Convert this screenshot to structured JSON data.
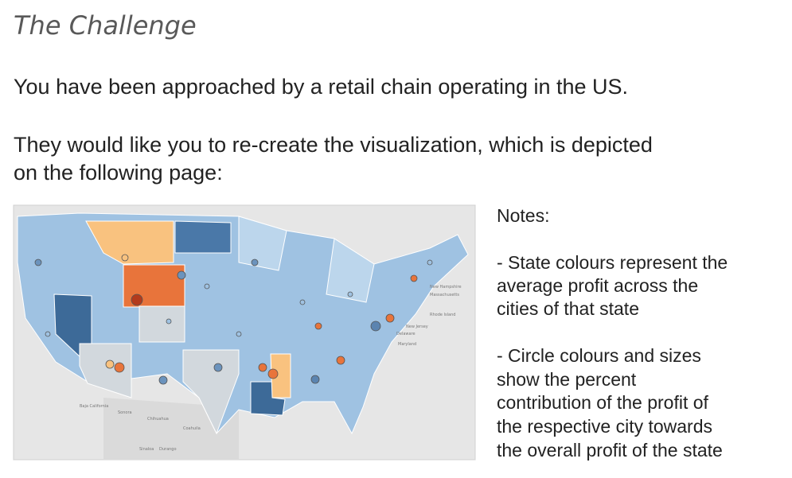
{
  "title": "The Challenge",
  "paragraphs": [
    [
      "You have been approached by a retail chain operating in the US."
    ],
    [
      "They would like you to re-create the visualization, which is depicted",
      "on the following page:"
    ]
  ],
  "map": {
    "labels": [
      "New Hampshire",
      "Massachusetts",
      "Rhode Island",
      "New Jersey",
      "Delaware",
      "Maryland",
      "Baja California",
      "Sonora",
      "Chihuahua",
      "Coahuila",
      "Sinaloa",
      "Durango"
    ]
  },
  "notes": {
    "heading": "Notes:",
    "items": [
      [
        "- State colours represent the",
        "average profit across the",
        "cities of that state"
      ],
      [
        "- Circle colours and sizes",
        "show the percent",
        "contribution of the profit of",
        "the respective city towards",
        "the overall profit of the state"
      ]
    ]
  }
}
